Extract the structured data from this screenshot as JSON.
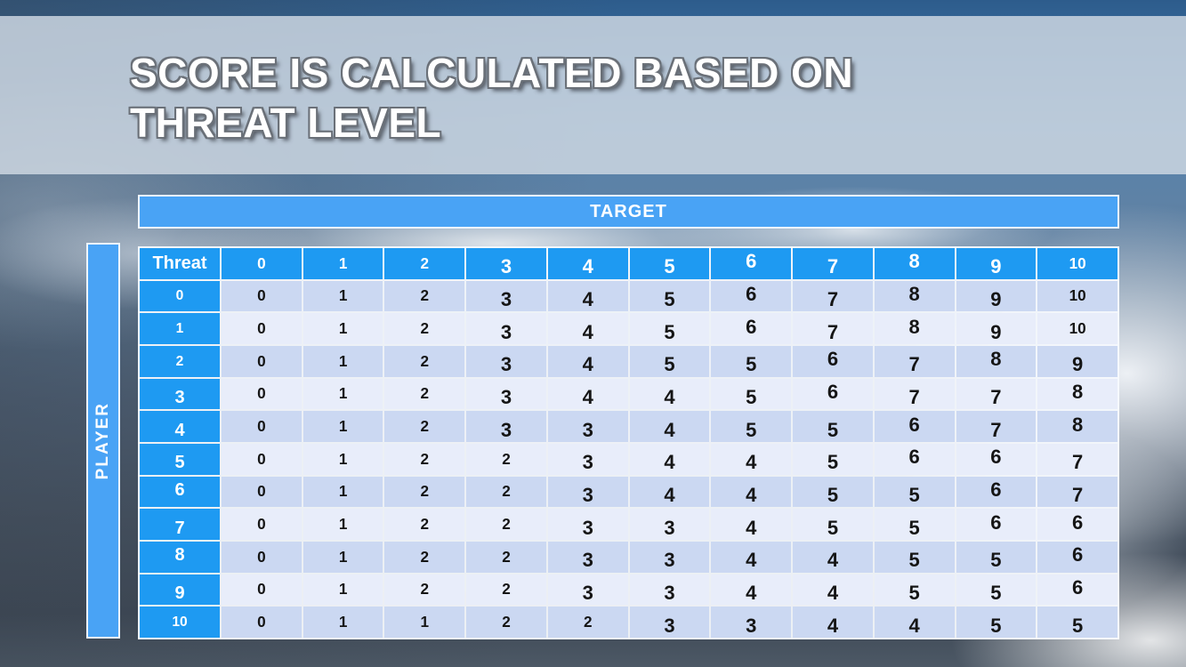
{
  "slide_title": {
    "line1": "SCORE IS CALCULATED BASED ON",
    "line2": "THREAT LEVEL"
  },
  "table": {
    "target_label": "TARGET",
    "player_label": "PLAYER",
    "corner_label": "Threat",
    "column_headers": [
      "0",
      "1",
      "2",
      "3",
      "4",
      "5",
      "6",
      "7",
      "8",
      "9",
      "10"
    ],
    "row_headers": [
      "0",
      "1",
      "2",
      "3",
      "4",
      "5",
      "6",
      "7",
      "8",
      "9",
      "10"
    ],
    "rows": [
      [
        0,
        1,
        2,
        3,
        4,
        5,
        6,
        7,
        8,
        9,
        10
      ],
      [
        0,
        1,
        2,
        3,
        4,
        5,
        6,
        7,
        8,
        9,
        10
      ],
      [
        0,
        1,
        2,
        3,
        4,
        5,
        5,
        6,
        7,
        8,
        9
      ],
      [
        0,
        1,
        2,
        3,
        4,
        4,
        5,
        6,
        7,
        7,
        8
      ],
      [
        0,
        1,
        2,
        3,
        3,
        4,
        5,
        5,
        6,
        7,
        8
      ],
      [
        0,
        1,
        2,
        2,
        3,
        4,
        4,
        5,
        6,
        6,
        7
      ],
      [
        0,
        1,
        2,
        2,
        3,
        4,
        4,
        5,
        5,
        6,
        7
      ],
      [
        0,
        1,
        2,
        2,
        3,
        3,
        4,
        5,
        5,
        6,
        6
      ],
      [
        0,
        1,
        2,
        2,
        3,
        3,
        4,
        4,
        5,
        5,
        6
      ],
      [
        0,
        1,
        2,
        2,
        3,
        3,
        4,
        4,
        5,
        5,
        6
      ],
      [
        0,
        1,
        1,
        2,
        2,
        3,
        3,
        4,
        4,
        5,
        5
      ]
    ]
  },
  "colors": {
    "header_blue": "#1E9AF2",
    "band_blue": "#49A3F5",
    "row_dark": "#CBD8F2",
    "row_light": "#E8EDFA",
    "title_text": "#FFFFFF",
    "title_band": "#CED8E2"
  }
}
